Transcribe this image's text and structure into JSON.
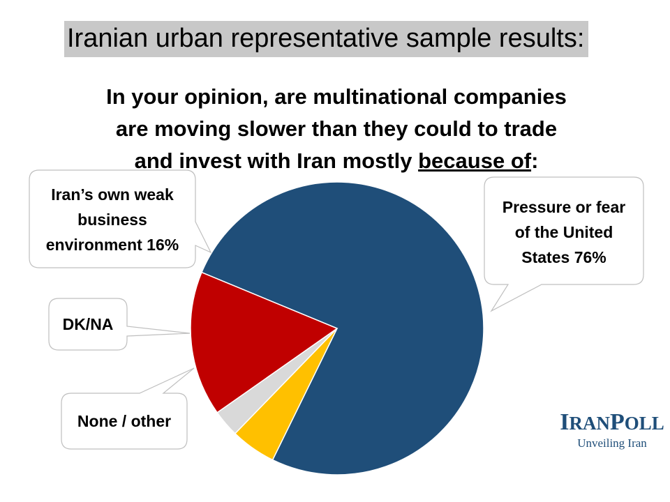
{
  "header": {
    "title": "Iranian urban representative sample results:"
  },
  "question": {
    "line1": "In your opinion, are multinational companies",
    "line2": "are moving slower than they could to trade",
    "line3_prefix": "and invest with Iran mostly ",
    "line3_underlined": "because of",
    "line3_suffix": ":"
  },
  "chart_data": {
    "type": "pie",
    "title": "",
    "slices": [
      {
        "label": "Pressure or fear of the United States 76%",
        "value": 76,
        "color": "#1f4e79"
      },
      {
        "label": "None / other",
        "value": 5,
        "color": "#ffc000"
      },
      {
        "label": "DK/NA",
        "value": 3,
        "color": "#d9d9d9"
      },
      {
        "label": "Iran’s own weak business environment 16%",
        "value": 16,
        "color": "#c00000"
      }
    ]
  },
  "callouts": {
    "us": {
      "line1": "Pressure or fear",
      "line2": "of the United",
      "line3": "States 76%"
    },
    "iran": {
      "line1": "Iran’s own weak",
      "line2": "business",
      "line3": "environment 16%"
    },
    "dk": {
      "line1": "DK/NA"
    },
    "none": {
      "line1": "None / other"
    }
  },
  "brand": {
    "name_initial_1": "I",
    "name_rest_1": "RAN",
    "name_initial_2": "P",
    "name_rest_2": "OLL",
    "tagline": "Unveiling Iran"
  }
}
